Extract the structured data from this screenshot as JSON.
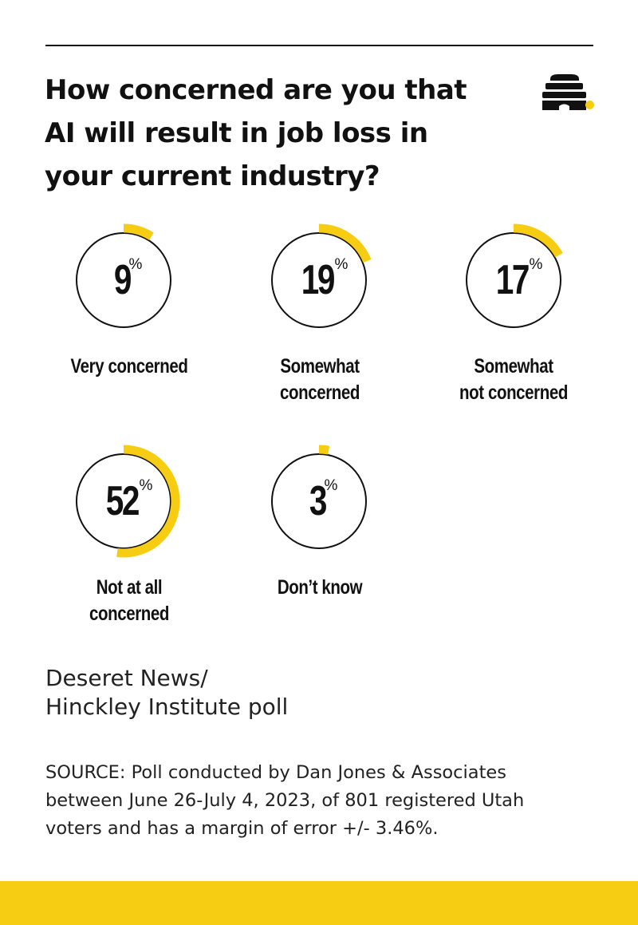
{
  "title_lines": [
    "How concerned are you that",
    "AI will result in job loss in",
    "your current industry?"
  ],
  "subtitle_lines": [
    "Deseret News/",
    "Hinckley Institute poll"
  ],
  "source_lines": [
    "SOURCE: Poll conducted by Dan Jones & Associates",
    "between June 26-July 4, 2023, of 801 registered Utah",
    "voters and has a margin of error +/- 3.46%."
  ],
  "colors": {
    "accent": "#f7cd14",
    "ink": "#111111",
    "background": "#ffffff"
  },
  "icons": {
    "logo": "beehive-icon"
  },
  "chart_data": {
    "type": "pie",
    "unit": "%",
    "categories": [
      "Very concerned",
      "Somewhat concerned",
      "Somewhat not concerned",
      "Not at all concerned",
      "Don’t know"
    ],
    "values": [
      9,
      19,
      17,
      52,
      3
    ],
    "display": [
      {
        "num": "9",
        "sign": "%",
        "label_lines": [
          "Very concerned"
        ]
      },
      {
        "num": "19",
        "sign": "%",
        "label_lines": [
          "Somewhat",
          "concerned"
        ]
      },
      {
        "num": "17",
        "sign": "%",
        "label_lines": [
          "Somewhat",
          "not concerned"
        ]
      },
      {
        "num": "52",
        "sign": "%",
        "label_lines": [
          "Not at all",
          "concerned"
        ]
      },
      {
        "num": "3",
        "sign": "%",
        "label_lines": [
          "Don’t know"
        ]
      }
    ],
    "title": "How concerned are you that AI will result in job loss in your current industry?"
  }
}
